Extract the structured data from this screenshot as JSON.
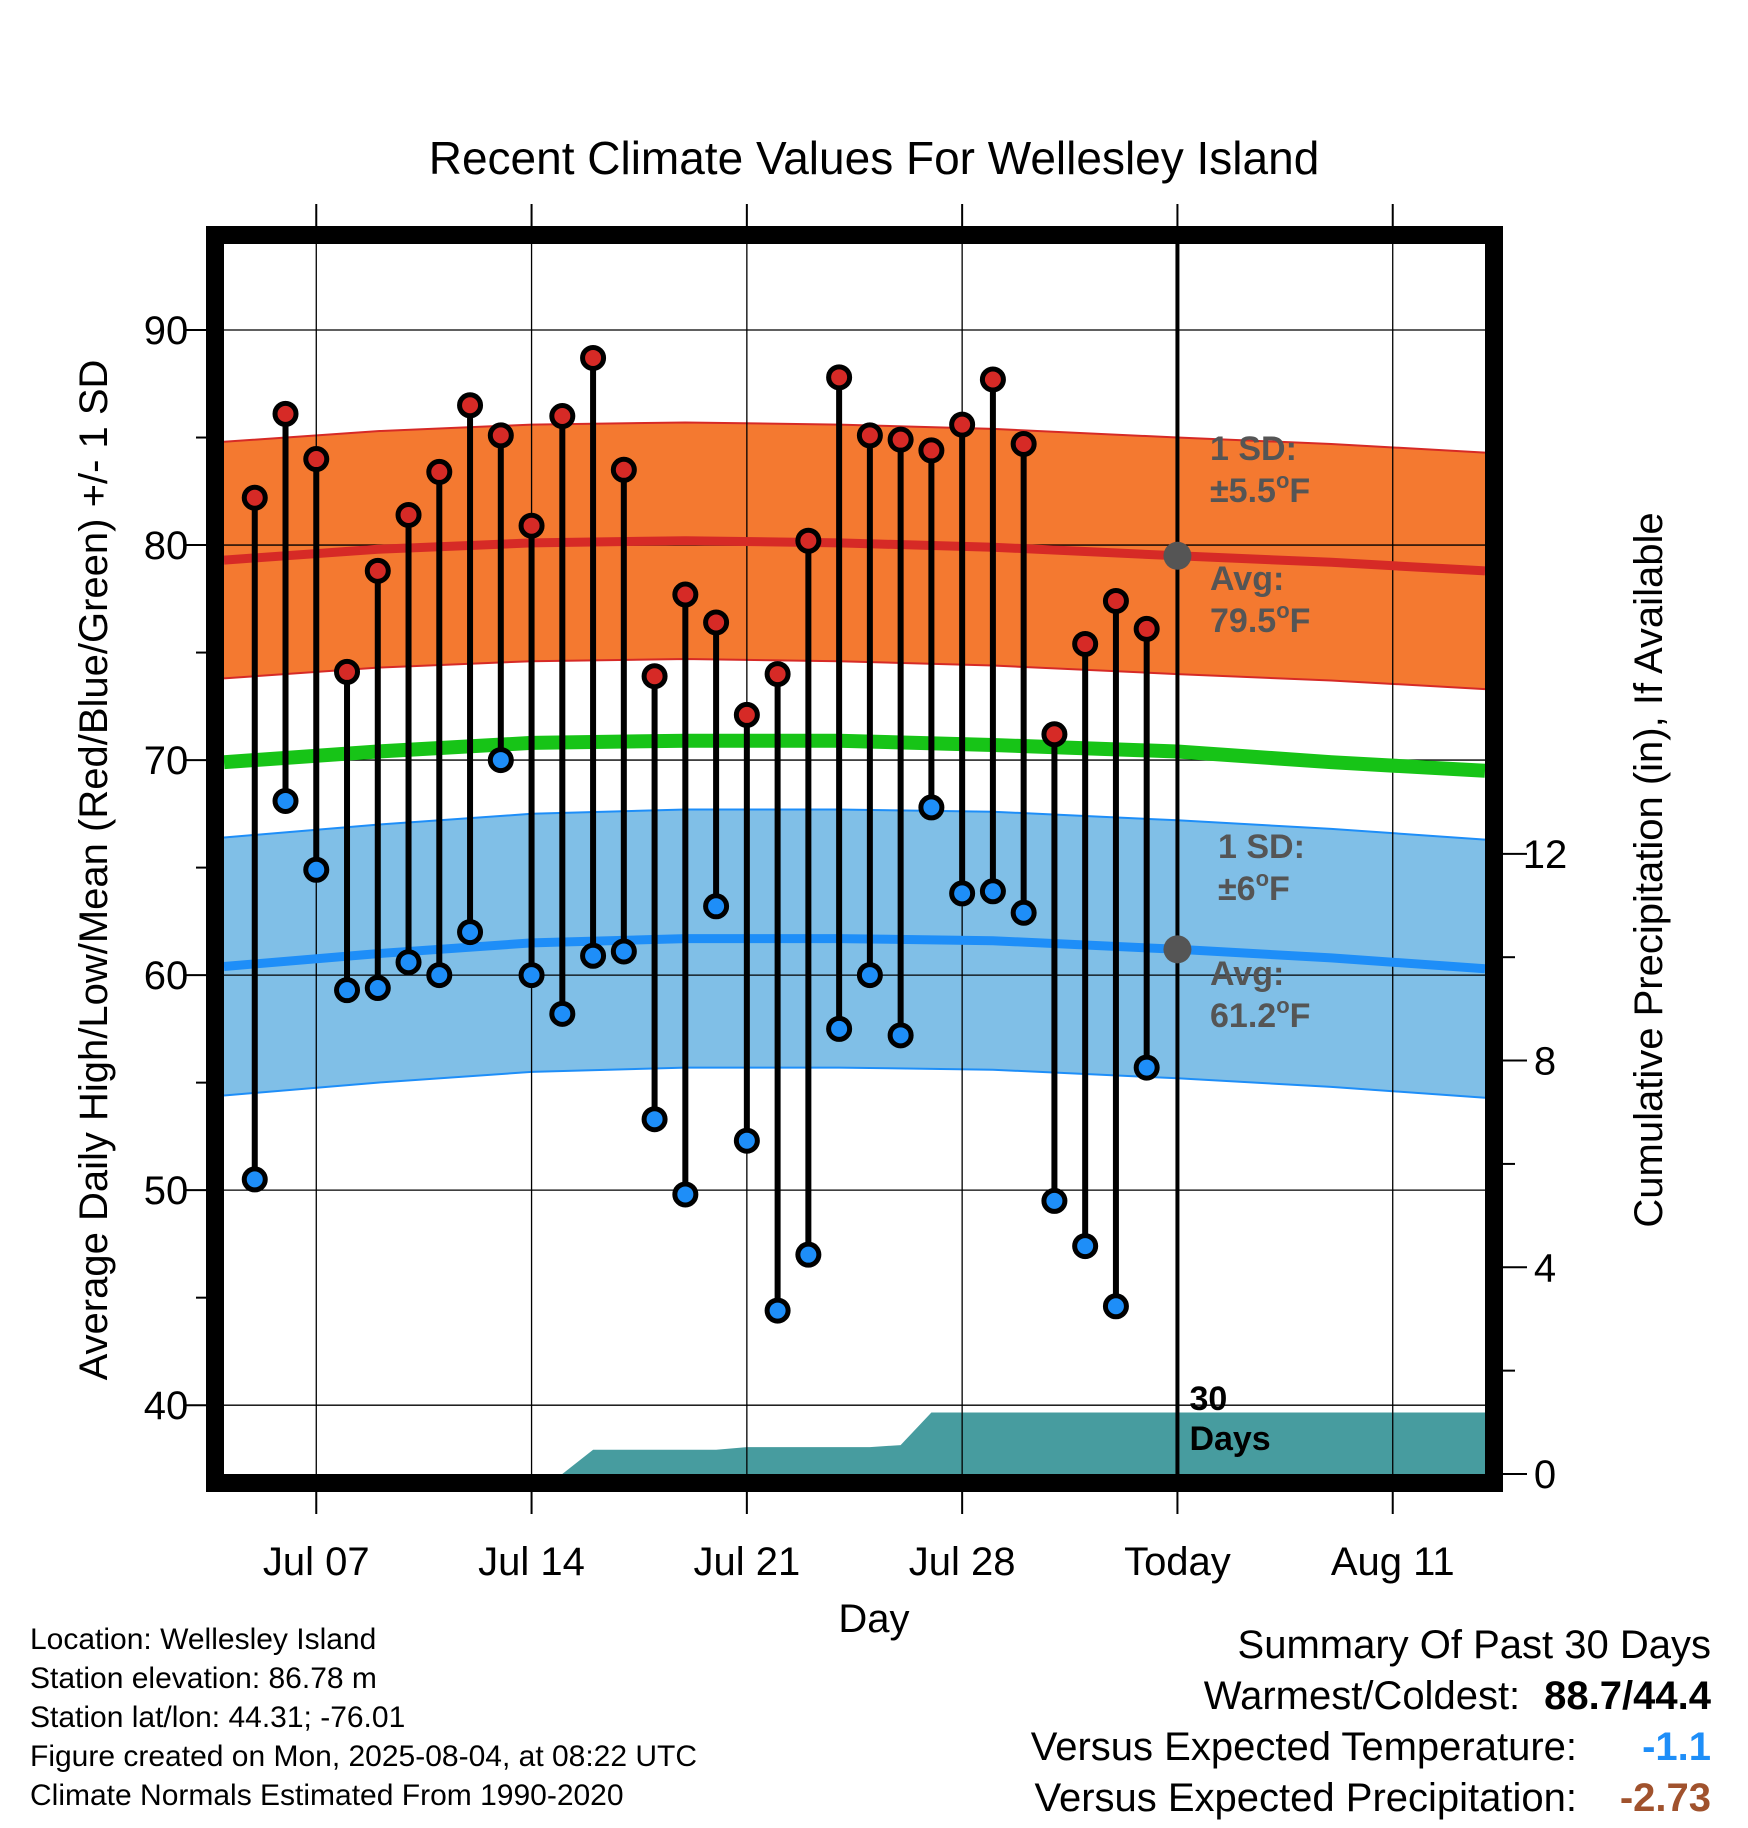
{
  "chart_data": {
    "type": "line",
    "title": "Recent Climate Values For Wellesley Island",
    "xlabel": "Day",
    "ylabel": "Average Daily High/Low/Mean (Red/Blue/Green) +/- 1 SD",
    "y2label": "Cumulative Precipitation (in), If Available",
    "xlim": [
      "2025-07-04",
      "2025-08-14"
    ],
    "ylim": [
      36.8,
      94.0
    ],
    "y2lim": [
      0,
      23.8
    ],
    "x_ticks": [
      {
        "date": "2025-07-07",
        "label": "Jul 07"
      },
      {
        "date": "2025-07-14",
        "label": "Jul 14"
      },
      {
        "date": "2025-07-21",
        "label": "Jul 21"
      },
      {
        "date": "2025-07-28",
        "label": "Jul 28"
      },
      {
        "date": "2025-08-04",
        "label": "Today"
      },
      {
        "date": "2025-08-11",
        "label": "Aug 11"
      }
    ],
    "y_ticks": [
      40,
      50,
      60,
      70,
      80,
      90
    ],
    "y2_ticks": [
      0,
      4,
      8,
      12
    ],
    "grid": true,
    "today": "2025-08-04",
    "today_label": "30 Days",
    "daily": [
      {
        "date": "2025-07-05",
        "high": 82.2,
        "low": 50.5
      },
      {
        "date": "2025-07-06",
        "high": 86.1,
        "low": 68.1
      },
      {
        "date": "2025-07-07",
        "high": 84.0,
        "low": 64.9
      },
      {
        "date": "2025-07-08",
        "high": 74.1,
        "low": 59.3
      },
      {
        "date": "2025-07-09",
        "high": 78.8,
        "low": 59.4
      },
      {
        "date": "2025-07-10",
        "high": 81.4,
        "low": 60.6
      },
      {
        "date": "2025-07-11",
        "high": 83.4,
        "low": 60.0
      },
      {
        "date": "2025-07-12",
        "high": 86.5,
        "low": 62.0
      },
      {
        "date": "2025-07-13",
        "high": 85.1,
        "low": 70.0
      },
      {
        "date": "2025-07-14",
        "high": 80.9,
        "low": 60.0
      },
      {
        "date": "2025-07-15",
        "high": 86.0,
        "low": 58.2
      },
      {
        "date": "2025-07-16",
        "high": 88.7,
        "low": 60.9
      },
      {
        "date": "2025-07-17",
        "high": 83.5,
        "low": 61.1
      },
      {
        "date": "2025-07-18",
        "high": 73.9,
        "low": 53.3
      },
      {
        "date": "2025-07-19",
        "high": 77.7,
        "low": 49.8
      },
      {
        "date": "2025-07-20",
        "high": 76.4,
        "low": 63.2
      },
      {
        "date": "2025-07-21",
        "high": 72.1,
        "low": 52.3
      },
      {
        "date": "2025-07-22",
        "high": 74.0,
        "low": 44.4
      },
      {
        "date": "2025-07-23",
        "high": 80.2,
        "low": 47.0
      },
      {
        "date": "2025-07-24",
        "high": 87.8,
        "low": 57.5
      },
      {
        "date": "2025-07-25",
        "high": 85.1,
        "low": 60.0
      },
      {
        "date": "2025-07-26",
        "high": 84.9,
        "low": 57.2
      },
      {
        "date": "2025-07-27",
        "high": 84.4,
        "low": 67.8
      },
      {
        "date": "2025-07-28",
        "high": 85.6,
        "low": 63.8
      },
      {
        "date": "2025-07-29",
        "high": 87.7,
        "low": 63.9
      },
      {
        "date": "2025-07-30",
        "high": 84.7,
        "low": 62.9
      },
      {
        "date": "2025-07-31",
        "high": 71.2,
        "low": 49.5
      },
      {
        "date": "2025-08-01",
        "high": 75.4,
        "low": 47.4
      },
      {
        "date": "2025-08-02",
        "high": 77.4,
        "low": 44.6
      },
      {
        "date": "2025-08-03",
        "high": 76.1,
        "low": 55.7
      }
    ],
    "normals": {
      "high": [
        {
          "date": "2025-07-04",
          "value": 79.3
        },
        {
          "date": "2025-07-09",
          "value": 79.8
        },
        {
          "date": "2025-07-14",
          "value": 80.1
        },
        {
          "date": "2025-07-19",
          "value": 80.2
        },
        {
          "date": "2025-07-24",
          "value": 80.1
        },
        {
          "date": "2025-07-29",
          "value": 79.9
        },
        {
          "date": "2025-08-04",
          "value": 79.5
        },
        {
          "date": "2025-08-09",
          "value": 79.2
        },
        {
          "date": "2025-08-14",
          "value": 78.8
        }
      ],
      "high_sd": 5.5,
      "mean": [
        {
          "date": "2025-07-04",
          "value": 69.9
        },
        {
          "date": "2025-07-09",
          "value": 70.4
        },
        {
          "date": "2025-07-14",
          "value": 70.8
        },
        {
          "date": "2025-07-19",
          "value": 70.9
        },
        {
          "date": "2025-07-24",
          "value": 70.9
        },
        {
          "date": "2025-07-29",
          "value": 70.7
        },
        {
          "date": "2025-08-04",
          "value": 70.4
        },
        {
          "date": "2025-08-09",
          "value": 69.9
        },
        {
          "date": "2025-08-14",
          "value": 69.5
        }
      ],
      "low": [
        {
          "date": "2025-07-04",
          "value": 60.4
        },
        {
          "date": "2025-07-09",
          "value": 61.0
        },
        {
          "date": "2025-07-14",
          "value": 61.5
        },
        {
          "date": "2025-07-19",
          "value": 61.7
        },
        {
          "date": "2025-07-24",
          "value": 61.7
        },
        {
          "date": "2025-07-29",
          "value": 61.6
        },
        {
          "date": "2025-08-04",
          "value": 61.2
        },
        {
          "date": "2025-08-09",
          "value": 60.8
        },
        {
          "date": "2025-08-14",
          "value": 60.3
        }
      ],
      "low_sd": 6.0
    },
    "precip_cumulative": [
      {
        "date": "2025-07-04",
        "value": 0
      },
      {
        "date": "2025-07-15",
        "value": 0
      },
      {
        "date": "2025-07-16",
        "value": 0.47
      },
      {
        "date": "2025-07-20",
        "value": 0.47
      },
      {
        "date": "2025-07-21",
        "value": 0.52
      },
      {
        "date": "2025-07-25",
        "value": 0.52
      },
      {
        "date": "2025-07-26",
        "value": 0.56
      },
      {
        "date": "2025-07-27",
        "value": 1.19
      },
      {
        "date": "2025-08-14",
        "value": 1.19
      }
    ],
    "annotations": {
      "high_sd": [
        "1 SD:",
        "±5.5°F"
      ],
      "high_avg": [
        "Avg:",
        "79.5°F"
      ],
      "low_sd": [
        "1 SD:",
        "±6°F"
      ],
      "low_avg": [
        "Avg:",
        "61.2°F"
      ]
    },
    "colors": {
      "high_band": "#f47930",
      "high_line": "#d62a26",
      "mean_line": "#17c417",
      "low_band": "#80bfe7",
      "low_line": "#1e8ef8",
      "high_dot": "#d62a26",
      "low_dot": "#1e8ef8",
      "precip": "#479c9f",
      "annotation": "#555555"
    }
  },
  "info": {
    "location": "Location: Wellesley Island",
    "elevation": "Station elevation: 86.78 m",
    "latlon": "Station lat/lon: 44.31; -76.01",
    "created": "Figure created on Mon, 2025-08-04, at 08:22 UTC",
    "normals": "Climate Normals Estimated From 1990-2020"
  },
  "summary": {
    "heading": "Summary Of Past 30 Days",
    "warm_label": "Warmest/Coldest:",
    "warm_value": "88.7/44.4",
    "temp_label": "Versus Expected Temperature:",
    "temp_value": "-1.1",
    "temp_color": "#1e8ef8",
    "precip_label": "Versus Expected Precipitation:",
    "precip_value": "-2.73",
    "precip_color": "#a0522d"
  }
}
